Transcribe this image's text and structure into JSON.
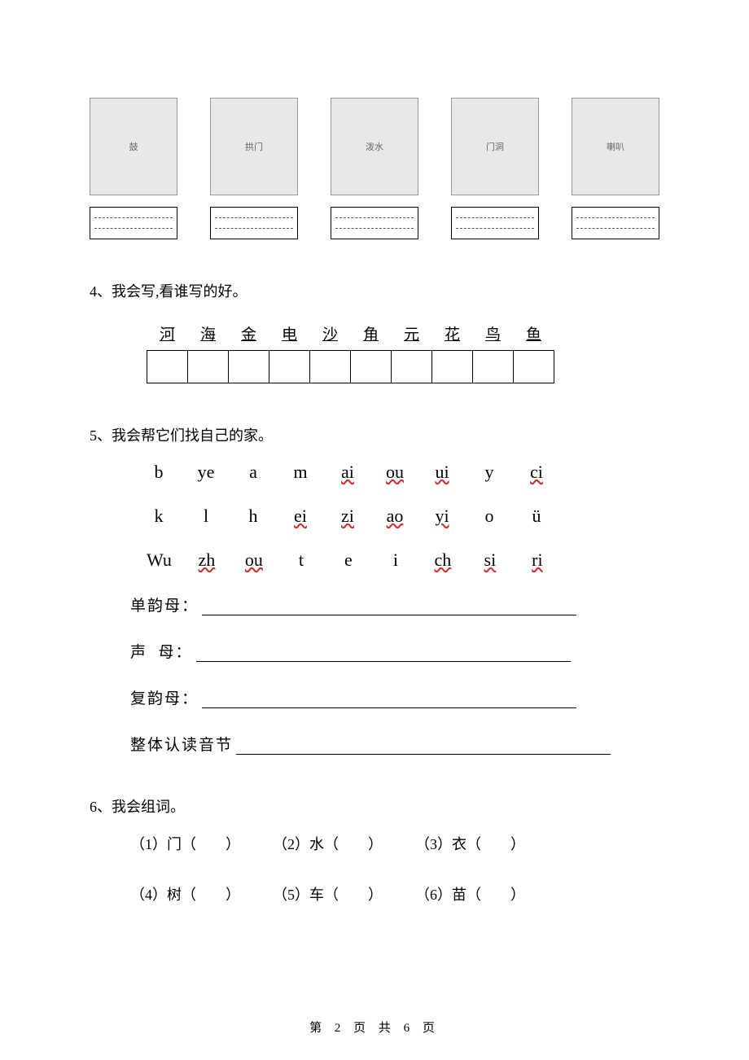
{
  "q3": {
    "images": [
      {
        "name": "drum-image",
        "alt": "鼓"
      },
      {
        "name": "arch-hide-image",
        "alt": "拱门"
      },
      {
        "name": "boy-sprinkle-image",
        "alt": "泼水"
      },
      {
        "name": "wall-arch-image",
        "alt": "门洞"
      },
      {
        "name": "soldier-bugle-image",
        "alt": "喇叭"
      }
    ]
  },
  "q4": {
    "title": "4、我会写,看谁写的好。",
    "characters": [
      "河",
      "海",
      "金",
      "电",
      "沙",
      "角",
      "元",
      "花",
      "鸟",
      "鱼"
    ]
  },
  "q5": {
    "title": "5、我会帮它们找自己的家。",
    "rows": [
      [
        {
          "text": "b",
          "wave": false
        },
        {
          "text": "ye",
          "wave": false
        },
        {
          "text": "a",
          "wave": false
        },
        {
          "text": "m",
          "wave": false
        },
        {
          "text": "ai",
          "wave": true
        },
        {
          "text": "ou",
          "wave": true
        },
        {
          "text": "ui",
          "wave": true
        },
        {
          "text": "y",
          "wave": false
        },
        {
          "text": "ci",
          "wave": true
        }
      ],
      [
        {
          "text": "k",
          "wave": false
        },
        {
          "text": "l",
          "wave": false
        },
        {
          "text": "h",
          "wave": false
        },
        {
          "text": "ei",
          "wave": true
        },
        {
          "text": "zi",
          "wave": true
        },
        {
          "text": "ao",
          "wave": true
        },
        {
          "text": "yi",
          "wave": true
        },
        {
          "text": "o",
          "wave": false
        },
        {
          "text": "ü",
          "wave": false
        }
      ],
      [
        {
          "text": "Wu",
          "wave": false
        },
        {
          "text": "zh",
          "wave": true
        },
        {
          "text": "ou",
          "wave": true
        },
        {
          "text": "t",
          "wave": false
        },
        {
          "text": "e",
          "wave": false
        },
        {
          "text": "i",
          "wave": false
        },
        {
          "text": "ch",
          "wave": true
        },
        {
          "text": "si",
          "wave": true
        },
        {
          "text": "ri",
          "wave": true
        }
      ]
    ],
    "classify": [
      {
        "label": "单韵母："
      },
      {
        "label": "声  母："
      },
      {
        "label": "复韵母："
      },
      {
        "label": "整体认读音节"
      }
    ]
  },
  "q6": {
    "title": "6、我会组词。",
    "row1": [
      {
        "num": "（1）",
        "char": "门"
      },
      {
        "num": "（2）",
        "char": "水"
      },
      {
        "num": "（3）",
        "char": "衣"
      }
    ],
    "row2": [
      {
        "num": "（4）",
        "char": "树"
      },
      {
        "num": "（5）",
        "char": "车"
      },
      {
        "num": "（6）",
        "char": "苗"
      }
    ]
  },
  "footer": "第 2 页 共 6 页"
}
